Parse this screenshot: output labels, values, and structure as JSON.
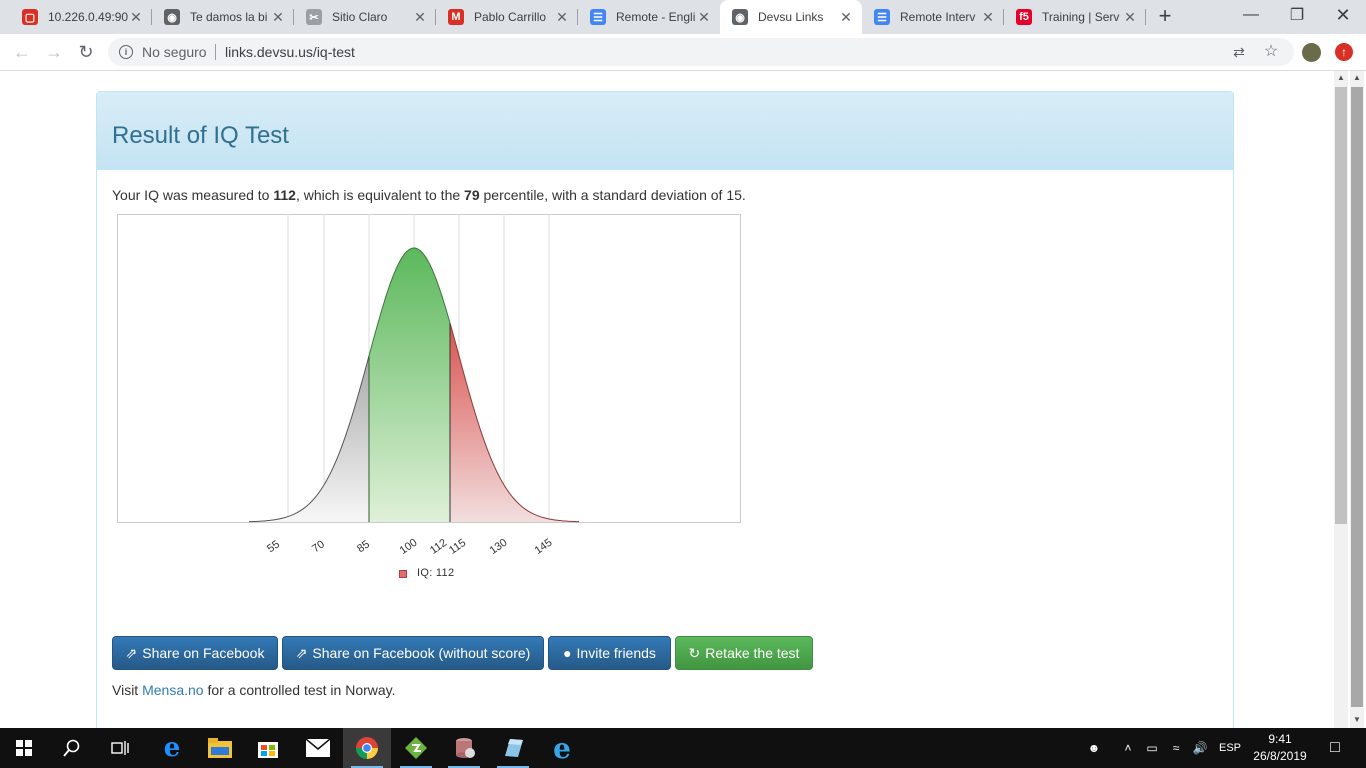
{
  "browser": {
    "tabs": [
      {
        "title": "10.226.0.49:90",
        "favicon": "red-square-icon",
        "color": "#d93025"
      },
      {
        "title": "Te damos la bi",
        "favicon": "globe-icon",
        "color": "#5f6368"
      },
      {
        "title": "Sitio Claro",
        "favicon": "scissors-icon",
        "color": "#9aa0a6"
      },
      {
        "title": "Pablo Carrillo",
        "favicon": "gmail-icon",
        "color": "#d93025"
      },
      {
        "title": "Remote - Engli",
        "favicon": "docs-icon",
        "color": "#4285f4"
      },
      {
        "title": "Devsu Links",
        "favicon": "globe-icon",
        "color": "#5f6368",
        "active": true
      },
      {
        "title": "Remote Interv",
        "favicon": "docs-icon",
        "color": "#4285f4"
      },
      {
        "title": "Training | Serv",
        "favicon": "f5-icon",
        "color": "#e4002b"
      }
    ],
    "security_label": "No seguro",
    "url": "links.devsu.us/iq-test"
  },
  "page": {
    "title": "Result of IQ Test",
    "result": {
      "prefix": "Your IQ was measured to ",
      "iq": "112",
      "mid": ", which is equivalent to the ",
      "percentile": "79",
      "suffix": " percentile, with a standard deviation of 15."
    },
    "legend_label": "IQ: 112",
    "buttons": {
      "share_facebook": "Share on Facebook",
      "share_facebook_noscore": "Share on Facebook (without score)",
      "invite": "Invite friends",
      "retake": "Retake the test"
    },
    "visit": {
      "prefix": "Visit ",
      "link": "Mensa.no",
      "suffix": " for a controlled test in Norway."
    }
  },
  "chart_data": {
    "type": "area",
    "x_ticks": [
      "55",
      "70",
      "85",
      "100",
      "112",
      "115",
      "130",
      "145"
    ],
    "mean": 100,
    "std_dev": 15,
    "score": 112,
    "regions": [
      {
        "from": 55,
        "to": 85,
        "color": "#cccccc"
      },
      {
        "from": 85,
        "to": 112,
        "color": "#5cb85c"
      },
      {
        "from": 112,
        "to": 145,
        "color": "#d9534f"
      }
    ],
    "series": [
      {
        "name": "IQ: 112",
        "values": [
          112
        ]
      }
    ]
  },
  "taskbar": {
    "language": "ESP",
    "time": "9:41",
    "date": "26/8/2019"
  }
}
